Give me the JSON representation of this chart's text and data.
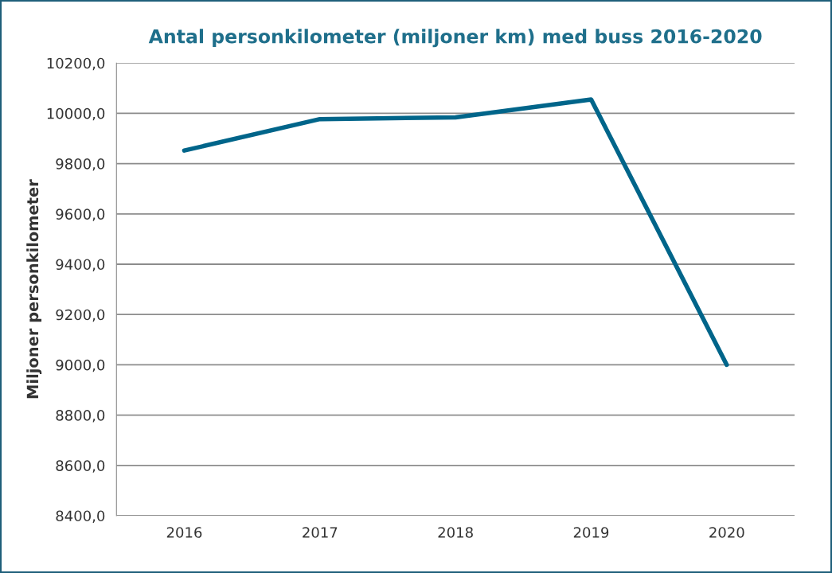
{
  "chart_data": {
    "type": "line",
    "title": "Antal personkilometer (miljoner km) med buss 2016-2020",
    "ylabel": "Miljoner personkilometer",
    "categories": [
      "2016",
      "2017",
      "2018",
      "2019",
      "2020"
    ],
    "series": [
      {
        "color": "#00658a",
        "values": [
          9852,
          9977,
          9984,
          10055,
          9000
        ]
      }
    ],
    "ylim": [
      8400,
      10200
    ],
    "yticks": [
      {
        "value": 8400,
        "label": "8400,0"
      },
      {
        "value": 8600,
        "label": "8600,0"
      },
      {
        "value": 8800,
        "label": "8800,0"
      },
      {
        "value": 9000,
        "label": "9000,0"
      },
      {
        "value": 9200,
        "label": "9200,0"
      },
      {
        "value": 9400,
        "label": "9400,0"
      },
      {
        "value": 9600,
        "label": "9600,0"
      },
      {
        "value": 9800,
        "label": "9800,0"
      },
      {
        "value": 10000,
        "label": "10000,0"
      },
      {
        "value": 10200,
        "label": "10200,0"
      }
    ],
    "grid": "y",
    "marker": "none",
    "line_style": "solid"
  }
}
